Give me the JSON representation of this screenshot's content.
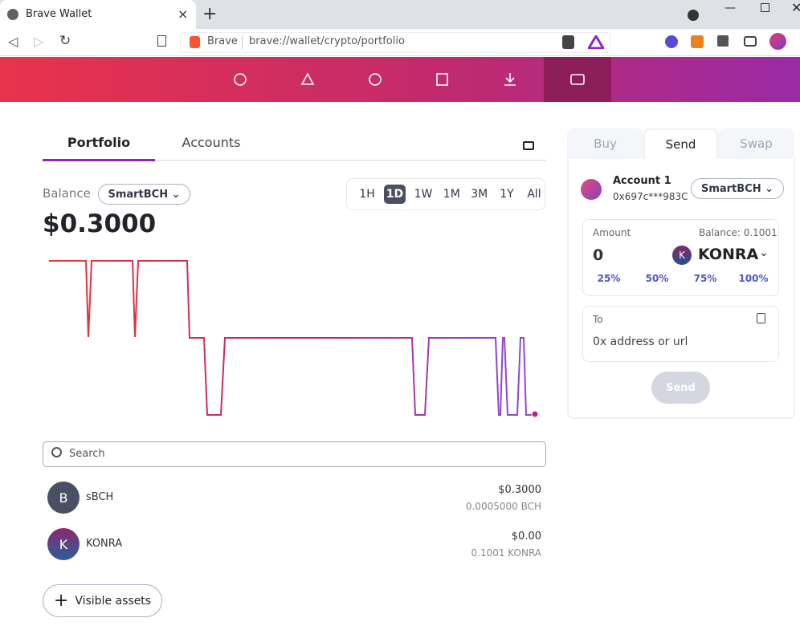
{
  "browser": {
    "tab_title": "Brave Wallet",
    "site_label": "Brave",
    "url": "brave://wallet/crypto/portfolio"
  },
  "portfolio": {
    "tabs": [
      "Portfolio",
      "Accounts"
    ],
    "balance_label": "Balance",
    "network": "SmartBCH",
    "timeframes": [
      "1H",
      "1D",
      "1W",
      "1M",
      "3M",
      "1Y",
      "All"
    ],
    "selected_timeframe": "1D",
    "balance": "$0.3000",
    "search_placeholder": "Search",
    "assets": [
      {
        "icon": "B",
        "name": "sBCH",
        "fiat": "$0.3000",
        "amount": "0.0005000 BCH"
      },
      {
        "icon": "K",
        "name": "KONRA",
        "fiat": "$0.00",
        "amount": "0.1001 KONRA"
      }
    ],
    "visible_assets": "Visible assets"
  },
  "panel": {
    "tabs": [
      "Buy",
      "Send",
      "Swap"
    ],
    "account_name": "Account 1",
    "account_address": "0x697c***983C",
    "network": "SmartBCH",
    "amount_label": "Amount",
    "balance": "Balance: 0.1001",
    "amount": "0",
    "token_icon": "K",
    "token": "KONRA",
    "percents": [
      "25%",
      "50%",
      "75%",
      "100%"
    ],
    "to_label": "To",
    "to_placeholder": "0x address or url",
    "send_button": "Send"
  }
}
